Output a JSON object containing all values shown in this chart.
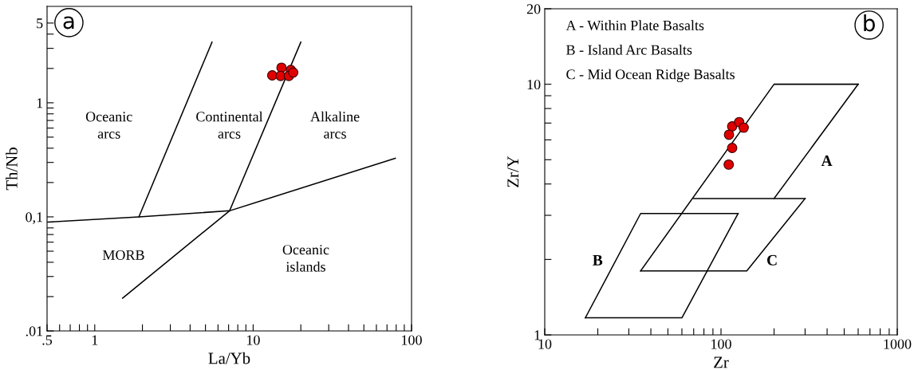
{
  "chart_data": [
    {
      "type": "scatter",
      "xlabel": "La/Yb",
      "ylabel": "Th/Nb",
      "log": "xy",
      "grid": false,
      "legend": false,
      "marker": "circle",
      "xlim": [
        0.5,
        100
      ],
      "ylim": [
        0.01,
        7
      ],
      "xticks": [
        {
          "value": 0.5,
          "label": ".5"
        },
        {
          "value": 0.6,
          "label": null
        },
        {
          "value": 0.7,
          "label": null
        },
        {
          "value": 0.8,
          "label": null
        },
        {
          "value": 0.9,
          "label": null
        },
        1,
        {
          "value": 2,
          "label": null
        },
        {
          "value": 3,
          "label": null
        },
        {
          "value": 4,
          "label": null
        },
        {
          "value": 5,
          "label": null
        },
        {
          "value": 6,
          "label": null
        },
        {
          "value": 7,
          "label": null
        },
        {
          "value": 8,
          "label": null
        },
        {
          "value": 9,
          "label": null
        },
        10,
        {
          "value": 20,
          "label": null
        },
        {
          "value": 30,
          "label": null
        },
        {
          "value": 40,
          "label": null
        },
        {
          "value": 50,
          "label": null
        },
        {
          "value": 60,
          "label": null
        },
        {
          "value": 70,
          "label": null
        },
        {
          "value": 80,
          "label": null
        },
        {
          "value": 90,
          "label": null
        },
        100
      ],
      "yticks": [
        {
          "value": 0.01,
          "label": ".01"
        },
        {
          "value": 0.02,
          "label": null
        },
        {
          "value": 0.03,
          "label": null
        },
        {
          "value": 0.04,
          "label": null
        },
        {
          "value": 0.05,
          "label": null
        },
        {
          "value": 0.06,
          "label": null
        },
        {
          "value": 0.07,
          "label": null
        },
        {
          "value": 0.08,
          "label": null
        },
        {
          "value": 0.09,
          "label": null
        },
        {
          "value": 0.1,
          "label": "0,1"
        },
        {
          "value": 0.2,
          "label": null
        },
        {
          "value": 0.3,
          "label": null
        },
        {
          "value": 0.4,
          "label": null
        },
        {
          "value": 0.5,
          "label": null
        },
        {
          "value": 0.6,
          "label": null
        },
        {
          "value": 0.7,
          "label": null
        },
        {
          "value": 0.8,
          "label": null
        },
        {
          "value": 0.9,
          "label": null
        },
        1,
        {
          "value": 2,
          "label": null
        },
        {
          "value": 3,
          "label": null
        },
        {
          "value": 4,
          "label": null
        },
        5
      ],
      "series": [
        {
          "type": "line",
          "marker": "none",
          "color": "#000000",
          "x": [
            0.51,
            1.9,
            7.1,
            79
          ],
          "values": [
            0.09,
            0.1,
            0.113,
            0.326
          ]
        },
        {
          "type": "line",
          "marker": "none",
          "color": "#000000",
          "x": [
            1.9,
            5.5
          ],
          "values": [
            0.1,
            3.4
          ]
        },
        {
          "type": "line",
          "marker": "none",
          "color": "#000000",
          "x": [
            1.5,
            7.1,
            20
          ],
          "values": [
            0.0194,
            0.113,
            3.4
          ]
        },
        {
          "color": "#e00000",
          "x": [
            13.2,
            15.1,
            14.9,
            17.3,
            16.8,
            17.9
          ],
          "values": [
            1.74,
            2.03,
            1.72,
            1.94,
            1.72,
            1.84
          ]
        }
      ],
      "annotations": [
        "a",
        "Oceanic\narcs",
        "Continental\narcs",
        "Alkaline\narcs",
        "MORB",
        "Oceanic\nislands"
      ]
    },
    {
      "type": "scatter",
      "xlabel": "Zr",
      "ylabel": "Zr/Y",
      "log": "xy",
      "grid": false,
      "legend": false,
      "marker": "circle",
      "xlim": [
        10,
        1000
      ],
      "ylim": [
        1,
        20
      ],
      "xticks": [
        10,
        {
          "value": 20,
          "label": null
        },
        {
          "value": 30,
          "label": null
        },
        {
          "value": 40,
          "label": null
        },
        {
          "value": 50,
          "label": null
        },
        {
          "value": 60,
          "label": null
        },
        {
          "value": 70,
          "label": null
        },
        {
          "value": 80,
          "label": null
        },
        {
          "value": 90,
          "label": null
        },
        100,
        {
          "value": 200,
          "label": null
        },
        {
          "value": 300,
          "label": null
        },
        {
          "value": 400,
          "label": null
        },
        {
          "value": 500,
          "label": null
        },
        {
          "value": 600,
          "label": null
        },
        {
          "value": 700,
          "label": null
        },
        {
          "value": 800,
          "label": null
        },
        {
          "value": 900,
          "label": null
        },
        1000
      ],
      "yticks": [
        1,
        {
          "value": 2,
          "label": null
        },
        {
          "value": 3,
          "label": null
        },
        {
          "value": 4,
          "label": null
        },
        {
          "value": 5,
          "label": null
        },
        {
          "value": 6,
          "label": null
        },
        {
          "value": 7,
          "label": null
        },
        {
          "value": 8,
          "label": null
        },
        {
          "value": 9,
          "label": null
        },
        10,
        20
      ],
      "series": [
        {
          "type": "line",
          "marker": "none",
          "color": "#000000",
          "x": [
            35,
            200,
            600
          ],
          "values": [
            1.8,
            10,
            10
          ]
        },
        {
          "type": "line",
          "marker": "none",
          "color": "#000000",
          "x": [
            200,
            600
          ],
          "values": [
            3.5,
            10
          ]
        },
        {
          "type": "line",
          "marker": "none",
          "color": "#000000",
          "x": [
            70,
            300
          ],
          "values": [
            3.5,
            3.5
          ]
        },
        {
          "type": "line",
          "marker": "none",
          "color": "#000000",
          "x": [
            35,
            140,
            300
          ],
          "values": [
            1.8,
            1.8,
            3.5
          ]
        },
        {
          "type": "line",
          "marker": "none",
          "color": "#000000",
          "x": [
            17,
            35,
            125
          ],
          "values": [
            1.17,
            3.05,
            3.05
          ]
        },
        {
          "type": "line",
          "marker": "none",
          "color": "#000000",
          "x": [
            17,
            60,
            125
          ],
          "values": [
            1.17,
            1.17,
            3.05
          ]
        },
        {
          "color": "#e00000",
          "x": [
            115.7,
            126.8,
            134.5,
            111,
            115.7,
            110.6
          ],
          "values": [
            6.79,
            7.06,
            6.71,
            6.29,
            5.57,
            4.78
          ]
        }
      ],
      "annotations": [
        "b",
        "A - Within Plate Basalts",
        "B - Island Arc Basalts",
        "C - Mid Ocean Ridge Basalts",
        "A",
        "B",
        "C"
      ]
    }
  ]
}
